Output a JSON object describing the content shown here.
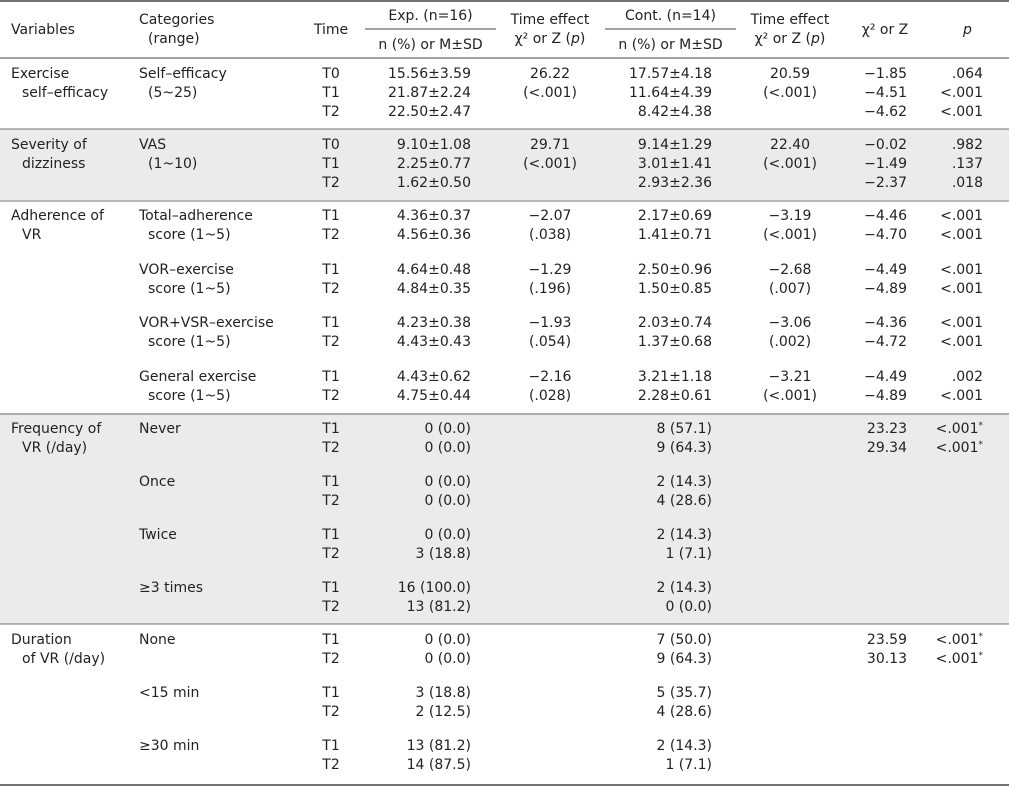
{
  "header": {
    "variables": "Variables",
    "categories": "Categories",
    "range": "(range)",
    "time": "Time",
    "exp_group": "Exp. (n=16)",
    "cont_group": "Cont. (n=14)",
    "n_or_m": "n (%) or M±SD",
    "time_effect": "Time effect",
    "time_effect_stat": "χ² or Z (p)",
    "chi_or_z": "χ² or Z",
    "p": "p"
  },
  "sections": [
    {
      "var_lines": [
        "Exercise",
        "self–efficacy"
      ],
      "shaded": false,
      "groups": [
        {
          "cat_lines": [
            "Self–efficacy",
            "(5~25)"
          ],
          "times": [
            "T0",
            "T1",
            "T2"
          ],
          "exp": [
            "15.56±3.59",
            "21.87±2.24",
            "22.50±2.47"
          ],
          "exp_eff": [
            "26.22",
            "(<.001)"
          ],
          "cont": [
            "17.57±4.18",
            "11.64±4.39",
            "8.42±4.38"
          ],
          "cont_eff": [
            "20.59",
            "(<.001)"
          ],
          "chi": [
            "−1.85",
            "−4.51",
            "−4.62"
          ],
          "p": [
            ".064",
            "<.001",
            "<.001"
          ],
          "star": [
            false,
            false,
            false
          ]
        }
      ]
    },
    {
      "var_lines": [
        "Severity of",
        "dizziness"
      ],
      "shaded": true,
      "groups": [
        {
          "cat_lines": [
            "VAS",
            "(1~10)"
          ],
          "times": [
            "T0",
            "T1",
            "T2"
          ],
          "exp": [
            "9.10±1.08",
            "2.25±0.77",
            "1.62±0.50"
          ],
          "exp_eff": [
            "29.71",
            "(<.001)"
          ],
          "cont": [
            "9.14±1.29",
            "3.01±1.41",
            "2.93±2.36"
          ],
          "cont_eff": [
            "22.40",
            "(<.001)"
          ],
          "chi": [
            "−0.02",
            "−1.49",
            "−2.37"
          ],
          "p": [
            ".982",
            ".137",
            ".018"
          ],
          "star": [
            false,
            false,
            false
          ]
        }
      ]
    },
    {
      "var_lines": [
        "Adherence of",
        "VR"
      ],
      "shaded": false,
      "groups": [
        {
          "cat_lines": [
            "Total–adherence",
            "score (1~5)"
          ],
          "times": [
            "T1",
            "T2"
          ],
          "exp": [
            "4.36±0.37",
            "4.56±0.36"
          ],
          "exp_eff": [
            "−2.07",
            "(.038)"
          ],
          "cont": [
            "2.17±0.69",
            "1.41±0.71"
          ],
          "cont_eff": [
            "−3.19",
            "(<.001)"
          ],
          "chi": [
            "−4.46",
            "−4.70"
          ],
          "p": [
            "<.001",
            "<.001"
          ],
          "star": [
            false,
            false
          ]
        },
        {
          "cat_lines": [
            "VOR–exercise",
            "score (1~5)"
          ],
          "times": [
            "T1",
            "T2"
          ],
          "exp": [
            "4.64±0.48",
            "4.84±0.35"
          ],
          "exp_eff": [
            "−1.29",
            "(.196)"
          ],
          "cont": [
            "2.50±0.96",
            "1.50±0.85"
          ],
          "cont_eff": [
            "−2.68",
            "(.007)"
          ],
          "chi": [
            "−4.49",
            "−4.89"
          ],
          "p": [
            "<.001",
            "<.001"
          ],
          "star": [
            false,
            false
          ]
        },
        {
          "cat_lines": [
            "VOR+VSR–exercise",
            "score (1~5)"
          ],
          "times": [
            "T1",
            "T2"
          ],
          "exp": [
            "4.23±0.38",
            "4.43±0.43"
          ],
          "exp_eff": [
            "−1.93",
            "(.054)"
          ],
          "cont": [
            "2.03±0.74",
            "1.37±0.68"
          ],
          "cont_eff": [
            "−3.06",
            "(.002)"
          ],
          "chi": [
            "−4.36",
            "−4.72"
          ],
          "p": [
            "<.001",
            "<.001"
          ],
          "star": [
            false,
            false
          ]
        },
        {
          "cat_lines": [
            "General exercise",
            "score (1~5)"
          ],
          "times": [
            "T1",
            "T2"
          ],
          "exp": [
            "4.43±0.62",
            "4.75±0.44"
          ],
          "exp_eff": [
            "−2.16",
            "(.028)"
          ],
          "cont": [
            "3.21±1.18",
            "2.28±0.61"
          ],
          "cont_eff": [
            "−3.21",
            "(<.001)"
          ],
          "chi": [
            "−4.49",
            "−4.89"
          ],
          "p": [
            ".002",
            "<.001"
          ],
          "star": [
            false,
            false
          ]
        }
      ]
    },
    {
      "var_lines": [
        "Frequency of",
        "VR (/day)"
      ],
      "shaded": true,
      "groups": [
        {
          "cat_lines": [
            "Never"
          ],
          "times": [
            "T1",
            "T2"
          ],
          "exp": [
            "0 (0.0)",
            "0 (0.0)"
          ],
          "exp_eff": [],
          "cont": [
            "8 (57.1)",
            "9 (64.3)"
          ],
          "cont_eff": [],
          "chi": [
            "23.23",
            "29.34"
          ],
          "p": [
            "<.001",
            "<.001"
          ],
          "star": [
            true,
            true
          ]
        },
        {
          "cat_lines": [
            "Once"
          ],
          "times": [
            "T1",
            "T2"
          ],
          "exp": [
            "0 (0.0)",
            "0 (0.0)"
          ],
          "exp_eff": [],
          "cont": [
            "2 (14.3)",
            "4 (28.6)"
          ],
          "cont_eff": [],
          "chi": [],
          "p": [],
          "star": []
        },
        {
          "cat_lines": [
            "Twice"
          ],
          "times": [
            "T1",
            "T2"
          ],
          "exp": [
            "0 (0.0)",
            "3 (18.8)"
          ],
          "exp_eff": [],
          "cont": [
            "2 (14.3)",
            "1 (7.1)"
          ],
          "cont_eff": [],
          "chi": [],
          "p": [],
          "star": []
        },
        {
          "cat_lines": [
            "≥3 times"
          ],
          "times": [
            "T1",
            "T2"
          ],
          "exp": [
            "16 (100.0)",
            "13 (81.2)"
          ],
          "exp_eff": [],
          "cont": [
            "2 (14.3)",
            "0 (0.0)"
          ],
          "cont_eff": [],
          "chi": [],
          "p": [],
          "star": []
        }
      ]
    },
    {
      "var_lines": [
        "Duration",
        "of VR (/day)"
      ],
      "shaded": false,
      "groups": [
        {
          "cat_lines": [
            "None"
          ],
          "times": [
            "T1",
            "T2"
          ],
          "exp": [
            "0 (0.0)",
            "0 (0.0)"
          ],
          "exp_eff": [],
          "cont": [
            "7 (50.0)",
            "9 (64.3)"
          ],
          "cont_eff": [],
          "chi": [
            "23.59",
            "30.13"
          ],
          "p": [
            "<.001",
            "<.001"
          ],
          "star": [
            true,
            true
          ]
        },
        {
          "cat_lines": [
            "<15 min"
          ],
          "times": [
            "T1",
            "T2"
          ],
          "exp": [
            "3 (18.8)",
            "2 (12.5)"
          ],
          "exp_eff": [],
          "cont": [
            "5 (35.7)",
            "4 (28.6)"
          ],
          "cont_eff": [],
          "chi": [],
          "p": [],
          "star": []
        },
        {
          "cat_lines": [
            "≥30 min"
          ],
          "times": [
            "T1",
            "T2"
          ],
          "exp": [
            "13 (81.2)",
            "14 (87.5)"
          ],
          "exp_eff": [],
          "cont": [
            "2 (14.3)",
            "1 (7.1)"
          ],
          "cont_eff": [],
          "chi": [],
          "p": [],
          "star": []
        }
      ]
    }
  ],
  "colors": {
    "shade": "#ebebeb",
    "rule": "#444444",
    "text": "#222222"
  }
}
